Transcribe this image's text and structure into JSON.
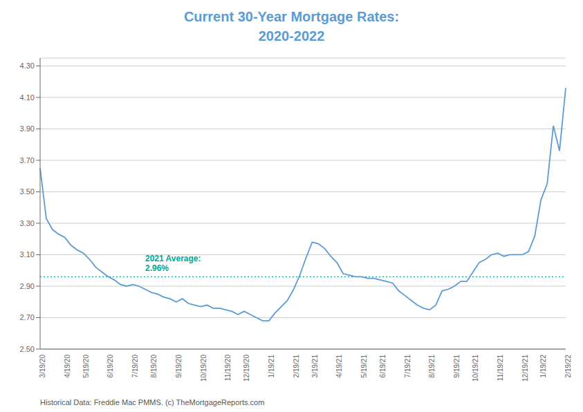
{
  "chart_data": {
    "type": "line",
    "title": "Current 30-Year Mortgage Rates:\n2020-2022",
    "color": "#5B9BD5",
    "grid": true,
    "categories": [
      "3/19/20",
      null,
      null,
      null,
      "4/19/20",
      null,
      null,
      "5/19/20",
      null,
      null,
      null,
      "6/19/20",
      null,
      null,
      null,
      "7/19/20",
      null,
      null,
      "8/19/20",
      null,
      null,
      null,
      "9/19/20",
      null,
      null,
      null,
      "10/19/20",
      null,
      null,
      null,
      "11/19/20",
      null,
      null,
      "12/19/20",
      null,
      null,
      null,
      "1/19/21",
      null,
      null,
      null,
      "2/19/21",
      null,
      null,
      "3/19/21",
      null,
      null,
      null,
      "4/19/21",
      null,
      null,
      null,
      "5/19/21",
      null,
      null,
      "6/19/21",
      null,
      null,
      null,
      "7/19/21",
      null,
      null,
      null,
      "8/19/21",
      null,
      null,
      null,
      "9/19/21",
      null,
      null,
      "10/19/21",
      null,
      null,
      null,
      "11/19/21",
      null,
      null,
      null,
      "12/19/21",
      null,
      null,
      "1/19/22",
      null,
      null,
      null,
      "2/19/22"
    ],
    "values": [
      3.65,
      3.33,
      3.26,
      3.23,
      3.21,
      3.16,
      3.13,
      3.11,
      3.07,
      3.02,
      2.99,
      2.96,
      2.94,
      2.91,
      2.9,
      2.91,
      2.9,
      2.88,
      2.86,
      2.85,
      2.83,
      2.82,
      2.8,
      2.82,
      2.79,
      2.78,
      2.77,
      2.78,
      2.76,
      2.76,
      2.75,
      2.74,
      2.72,
      2.74,
      2.72,
      2.7,
      2.68,
      2.68,
      2.73,
      2.77,
      2.81,
      2.88,
      2.97,
      3.08,
      3.18,
      3.17,
      3.14,
      3.09,
      3.05,
      2.98,
      2.97,
      2.96,
      2.96,
      2.95,
      2.95,
      2.94,
      2.93,
      2.92,
      2.87,
      2.84,
      2.81,
      2.78,
      2.76,
      2.75,
      2.78,
      2.87,
      2.88,
      2.9,
      2.93,
      2.93,
      2.99,
      3.05,
      3.07,
      3.1,
      3.11,
      3.09,
      3.1,
      3.1,
      3.1,
      3.12,
      3.22,
      3.45,
      3.55,
      3.92,
      3.76,
      4.16
    ],
    "ylim": [
      2.5,
      4.35
    ],
    "yticks": [
      {
        "value": 2.5,
        "label": "2.50"
      },
      {
        "value": 2.7,
        "label": "2.70"
      },
      {
        "value": 2.9,
        "label": "2.90"
      },
      {
        "value": 3.1,
        "label": "3.10"
      },
      {
        "value": 3.3,
        "label": "3.30"
      },
      {
        "value": 3.5,
        "label": "3.50"
      },
      {
        "value": 3.7,
        "label": "3.70"
      },
      {
        "value": 3.9,
        "label": "3.90"
      },
      {
        "value": 4.1,
        "label": "4.10"
      },
      {
        "value": 4.3,
        "label": "4.30"
      }
    ],
    "annotations": [
      {
        "y": 2.96,
        "text": "2021 Average:\n2.96%",
        "color": "#00A693",
        "line_style": "dotted"
      },
      {
        "text": "Historical Data: Freddie Mac PMMS. (c) TheMortgageReports.com"
      }
    ]
  }
}
